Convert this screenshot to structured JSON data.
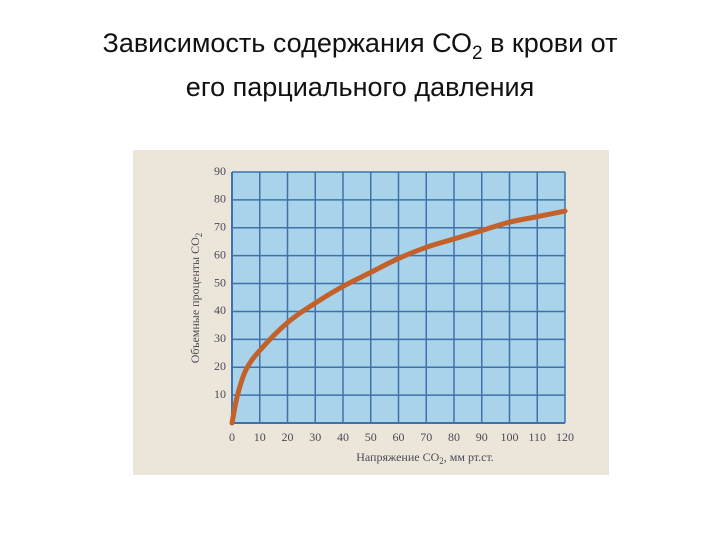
{
  "chart_data": {
    "type": "line",
    "title": [
      "Зависимость содержания СО",
      "2",
      " в крови от",
      "его парциального давления"
    ],
    "xlabel": [
      "Напряжение СО",
      "2",
      ", мм рт.ст."
    ],
    "ylabel": [
      "Объемные проценты СО",
      "2"
    ],
    "x": [
      0,
      2,
      5,
      10,
      20,
      30,
      40,
      50,
      60,
      70,
      80,
      90,
      100,
      110,
      120
    ],
    "series": [
      {
        "color": "#c4612b",
        "values": [
          0,
          10,
          19,
          26,
          36,
          43,
          49,
          54,
          59,
          63,
          66,
          69,
          72,
          74,
          76
        ]
      }
    ],
    "xlim": [
      0,
      120
    ],
    "ylim": [
      0,
      90
    ],
    "xticks": [
      0,
      10,
      20,
      30,
      40,
      50,
      60,
      70,
      80,
      90,
      100,
      110,
      120
    ],
    "yticks": [
      10,
      20,
      30,
      40,
      50,
      60,
      70,
      80,
      90
    ],
    "grid": true
  }
}
